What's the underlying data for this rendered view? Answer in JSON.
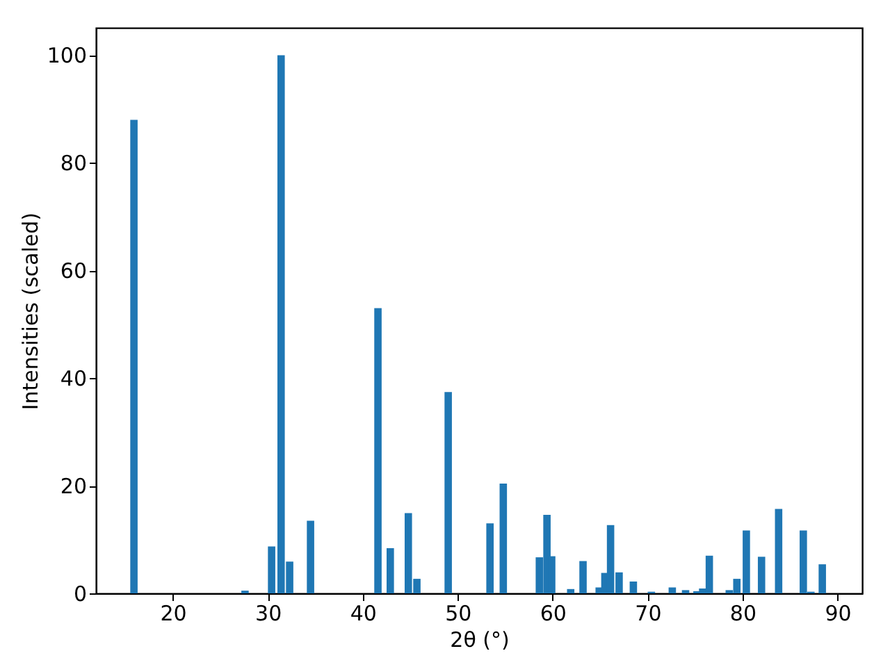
{
  "chart_data": {
    "type": "bar",
    "xlabel": "2θ (°)",
    "ylabel": "Intensities (scaled)",
    "x": [
      15.9,
      27.6,
      30.4,
      31.4,
      32.3,
      34.5,
      41.6,
      42.9,
      44.8,
      45.7,
      49.0,
      53.4,
      54.8,
      58.6,
      59.4,
      59.9,
      61.9,
      63.2,
      64.9,
      65.5,
      66.1,
      67.0,
      68.5,
      70.4,
      72.6,
      74.0,
      75.2,
      75.8,
      76.5,
      78.6,
      79.4,
      80.4,
      82.0,
      83.8,
      86.4,
      87.2,
      88.4
    ],
    "values": [
      88,
      0.5,
      8.7,
      100,
      5.9,
      13.5,
      53,
      8.4,
      14.9,
      2.7,
      37.4,
      13,
      20.4,
      6.7,
      14.6,
      6.9,
      0.8,
      6.0,
      1.1,
      3.8,
      12.7,
      3.9,
      2.2,
      0.3,
      1.1,
      0.6,
      0.4,
      0.9,
      7.0,
      0.6,
      2.7,
      11.7,
      6.8,
      15.7,
      11.7,
      0.3,
      5.4
    ],
    "color": "#1f77b4",
    "xlim": [
      11.9,
      92.6
    ],
    "xticks": [
      20,
      30,
      40,
      50,
      60,
      70,
      80,
      90
    ],
    "ylim": [
      0,
      105.1
    ],
    "yticks": [
      0,
      20,
      40,
      60,
      80,
      100
    ],
    "grid": false
  }
}
